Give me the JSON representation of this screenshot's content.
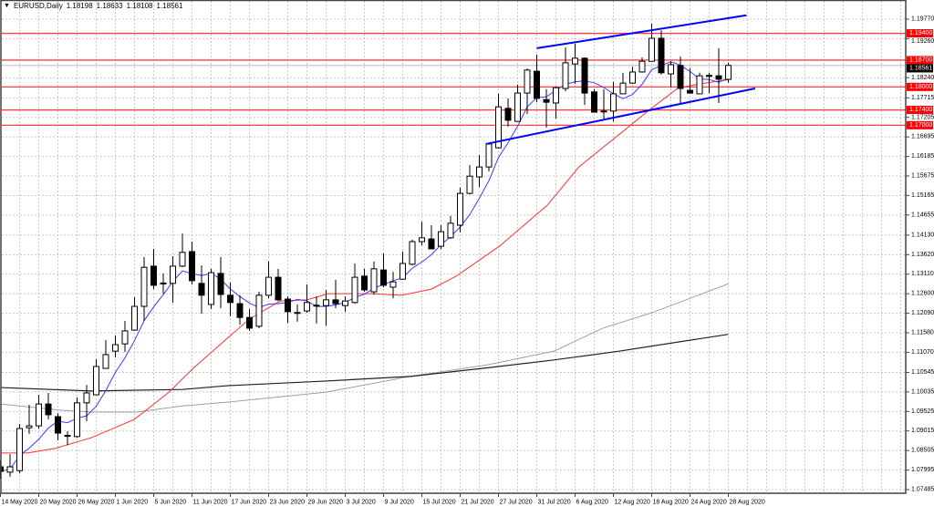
{
  "header": {
    "symbol": "EURUSD,Daily",
    "open": "1.18198",
    "high": "1.18633",
    "low": "1.18108",
    "close": "1.18561"
  },
  "colors": {
    "bull_body": "#ffffff",
    "bear_body": "#000000",
    "wick": "#000000",
    "ma_fast": "#3a3aff",
    "ma_mid": "#ff3030",
    "ma_slow_light": "#a0a0a0",
    "ma_slow_dark": "#202020",
    "level_line": "#ff4040",
    "channel": "#0000ff",
    "grid": "#c8c8c8",
    "current_price_bg": "#000000"
  },
  "chart_data": {
    "type": "candlestick",
    "title": "EURUSD,Daily",
    "ylim": [
      1.07485,
      1.1977
    ],
    "grid": true,
    "price_ticks": [
      "1.19770",
      "1.19260",
      "1.18240",
      "1.17715",
      "1.17205",
      "1.16695",
      "1.16185",
      "1.15675",
      "1.15165",
      "1.14655",
      "1.14130",
      "1.13620",
      "1.13110",
      "1.12600",
      "1.12090",
      "1.11580",
      "1.11070",
      "1.10545",
      "1.10035",
      "1.09525",
      "1.09015",
      "1.08505",
      "1.07995",
      "1.07485"
    ],
    "date_labels": [
      {
        "bar": 0,
        "label": "14 May 2020"
      },
      {
        "bar": 4,
        "label": "20 May 2020"
      },
      {
        "bar": 8,
        "label": "26 May 2020"
      },
      {
        "bar": 12,
        "label": "1 Jun 2020"
      },
      {
        "bar": 16,
        "label": "5 Jun 2020"
      },
      {
        "bar": 20,
        "label": "11 Jun 2020"
      },
      {
        "bar": 24,
        "label": "17 Jun 2020"
      },
      {
        "bar": 28,
        "label": "23 Jun 2020"
      },
      {
        "bar": 32,
        "label": "29 Jun 2020"
      },
      {
        "bar": 36,
        "label": "3 Jul 2020"
      },
      {
        "bar": 40,
        "label": "9 Jul 2020"
      },
      {
        "bar": 44,
        "label": "15 Jul 2020"
      },
      {
        "bar": 48,
        "label": "21 Jul 2020"
      },
      {
        "bar": 52,
        "label": "27 Jul 2020"
      },
      {
        "bar": 56,
        "label": "31 Jul 2020"
      },
      {
        "bar": 60,
        "label": "6 Aug 2020"
      },
      {
        "bar": 64,
        "label": "12 Aug 2020"
      },
      {
        "bar": 68,
        "label": "18 Aug 2020"
      },
      {
        "bar": 72,
        "label": "24 Aug 2020"
      },
      {
        "bar": 76,
        "label": "28 Aug 2020"
      }
    ],
    "ohlc": [
      [
        1.0808,
        1.0825,
        1.0777,
        1.0796
      ],
      [
        1.0794,
        1.0841,
        1.0782,
        1.0808
      ],
      [
        1.0798,
        1.092,
        1.0791,
        1.0908
      ],
      [
        1.091,
        1.097,
        1.0894,
        1.0915
      ],
      [
        1.0915,
        1.0996,
        1.0908,
        1.0972
      ],
      [
        1.0972,
        1.1001,
        1.0932,
        1.0944
      ],
      [
        1.0939,
        1.0948,
        1.0877,
        1.0896
      ],
      [
        1.089,
        1.0901,
        1.0865,
        1.0889
      ],
      [
        1.0887,
        1.0989,
        1.0884,
        1.0975
      ],
      [
        1.0975,
        1.1022,
        1.0927,
        1.1001
      ],
      [
        1.0996,
        1.1089,
        1.0996,
        1.107
      ],
      [
        1.1065,
        1.1139,
        1.1065,
        1.1101
      ],
      [
        1.111,
        1.1151,
        1.1094,
        1.1127
      ],
      [
        1.1129,
        1.1189,
        1.1108,
        1.1163
      ],
      [
        1.1165,
        1.1251,
        1.1163,
        1.1227
      ],
      [
        1.1227,
        1.1356,
        1.1189,
        1.1329
      ],
      [
        1.1332,
        1.1377,
        1.1272,
        1.1282
      ],
      [
        1.1288,
        1.1313,
        1.126,
        1.1287
      ],
      [
        1.1287,
        1.1358,
        1.1237,
        1.1332
      ],
      [
        1.1332,
        1.1417,
        1.1329,
        1.1368
      ],
      [
        1.137,
        1.1396,
        1.1284,
        1.1294
      ],
      [
        1.1287,
        1.1334,
        1.1208,
        1.1256
      ],
      [
        1.1232,
        1.1325,
        1.122,
        1.1315
      ],
      [
        1.1313,
        1.1356,
        1.1222,
        1.1258
      ],
      [
        1.1256,
        1.1289,
        1.1201,
        1.1237
      ],
      [
        1.1234,
        1.1256,
        1.1179,
        1.1198
      ],
      [
        1.1198,
        1.122,
        1.1163,
        1.117
      ],
      [
        1.1175,
        1.1265,
        1.117,
        1.1256
      ],
      [
        1.1256,
        1.1344,
        1.1248,
        1.1303
      ],
      [
        1.1303,
        1.1325,
        1.1241,
        1.1244
      ],
      [
        1.1246,
        1.1253,
        1.1184,
        1.1213
      ],
      [
        1.1211,
        1.1232,
        1.1187,
        1.121
      ],
      [
        1.1215,
        1.1284,
        1.121,
        1.1237
      ],
      [
        1.1229,
        1.1253,
        1.1182,
        1.123
      ],
      [
        1.1229,
        1.127,
        1.1177,
        1.1244
      ],
      [
        1.1244,
        1.1296,
        1.1222,
        1.1234
      ],
      [
        1.1229,
        1.1253,
        1.1213,
        1.1241
      ],
      [
        1.1237,
        1.1339,
        1.1234,
        1.1303
      ],
      [
        1.1306,
        1.1325,
        1.1265,
        1.127
      ],
      [
        1.1265,
        1.1344,
        1.1258,
        1.1325
      ],
      [
        1.1322,
        1.1365,
        1.1277,
        1.1282
      ],
      [
        1.1277,
        1.1317,
        1.1248,
        1.1291
      ],
      [
        1.1298,
        1.137,
        1.1296,
        1.1339
      ],
      [
        1.1337,
        1.1401,
        1.1334,
        1.1396
      ],
      [
        1.1396,
        1.1448,
        1.1387,
        1.1406
      ],
      [
        1.1403,
        1.1439,
        1.1377,
        1.1377
      ],
      [
        1.1384,
        1.1439,
        1.1377,
        1.1422
      ],
      [
        1.1406,
        1.1463,
        1.1403,
        1.1444
      ],
      [
        1.1439,
        1.1537,
        1.142,
        1.1522
      ],
      [
        1.1522,
        1.1596,
        1.152,
        1.1567
      ],
      [
        1.1565,
        1.1622,
        1.1539,
        1.1591
      ],
      [
        1.1591,
        1.1653,
        1.1579,
        1.1651
      ],
      [
        1.1641,
        1.1782,
        1.1639,
        1.1748
      ],
      [
        1.1744,
        1.177,
        1.1696,
        1.1713
      ],
      [
        1.171,
        1.1806,
        1.171,
        1.1784
      ],
      [
        1.1784,
        1.1848,
        1.1729,
        1.1844
      ],
      [
        1.1841,
        1.1884,
        1.176,
        1.177
      ],
      [
        1.1767,
        1.1794,
        1.1694,
        1.176
      ],
      [
        1.1758,
        1.1801,
        1.1717,
        1.1798
      ],
      [
        1.1796,
        1.1903,
        1.1789,
        1.1863
      ],
      [
        1.186,
        1.1913,
        1.1808,
        1.1875
      ],
      [
        1.1875,
        1.1877,
        1.1753,
        1.1784
      ],
      [
        1.1787,
        1.1794,
        1.1734,
        1.1734
      ],
      [
        1.1736,
        1.1794,
        1.1717,
        1.1737
      ],
      [
        1.1737,
        1.1813,
        1.171,
        1.1782
      ],
      [
        1.1782,
        1.1837,
        1.1782,
        1.181
      ],
      [
        1.181,
        1.1853,
        1.1808,
        1.1839
      ],
      [
        1.1839,
        1.1877,
        1.1837,
        1.1867
      ],
      [
        1.1867,
        1.1965,
        1.1867,
        1.1927
      ],
      [
        1.1927,
        1.1948,
        1.1832,
        1.1837
      ],
      [
        1.1834,
        1.1867,
        1.1798,
        1.1858
      ],
      [
        1.1856,
        1.1879,
        1.1753,
        1.1796
      ],
      [
        1.1791,
        1.1848,
        1.1782,
        1.1784
      ],
      [
        1.1782,
        1.1837,
        1.1782,
        1.1829
      ],
      [
        1.1829,
        1.1837,
        1.1784,
        1.183
      ],
      [
        1.1829,
        1.1901,
        1.1758,
        1.182
      ],
      [
        1.18198,
        1.18633,
        1.18108,
        1.18561
      ]
    ],
    "ma_fast_period": 5,
    "ma_mid": [
      [
        0,
        1.0844
      ],
      [
        2.8,
        1.0844
      ],
      [
        5.7,
        1.0856
      ],
      [
        9.5,
        1.0884
      ],
      [
        14,
        1.0932
      ],
      [
        17.6,
        1.1003
      ],
      [
        20.2,
        1.1067
      ],
      [
        23.8,
        1.1146
      ],
      [
        26,
        1.1194
      ],
      [
        29.2,
        1.1241
      ],
      [
        32,
        1.1244
      ],
      [
        34.2,
        1.126
      ],
      [
        38.7,
        1.126
      ],
      [
        41.9,
        1.1256
      ],
      [
        45,
        1.1272
      ],
      [
        47.6,
        1.1306
      ],
      [
        52.1,
        1.1384
      ],
      [
        57.1,
        1.1491
      ],
      [
        60.4,
        1.1591
      ],
      [
        65.7,
        1.1698
      ],
      [
        67.6,
        1.1737
      ],
      [
        70.7,
        1.1796
      ],
      [
        73,
        1.1808
      ],
      [
        75.5,
        1.1817
      ],
      [
        76,
        1.1819
      ]
    ],
    "ma_slow_light": [
      [
        0,
        1.0972
      ],
      [
        6.3,
        1.0956
      ],
      [
        9.5,
        1.0951
      ],
      [
        14.2,
        1.0951
      ],
      [
        19,
        1.0967
      ],
      [
        23.8,
        1.0977
      ],
      [
        34,
        1.1003
      ],
      [
        42.8,
        1.1044
      ],
      [
        51,
        1.1075
      ],
      [
        57.8,
        1.111
      ],
      [
        62.9,
        1.117
      ],
      [
        68,
        1.121
      ],
      [
        76,
        1.1286
      ]
    ],
    "ma_slow_dark": [
      [
        0,
        1.1015
      ],
      [
        9.5,
        1.1006
      ],
      [
        19,
        1.101
      ],
      [
        23.8,
        1.102
      ],
      [
        34,
        1.1032
      ],
      [
        42.8,
        1.1044
      ],
      [
        51,
        1.1067
      ],
      [
        57.8,
        1.1087
      ],
      [
        64.6,
        1.111
      ],
      [
        76,
        1.1154
      ]
    ],
    "levels": [
      {
        "price": 1.194,
        "label": "1.19400"
      },
      {
        "price": 1.187,
        "label": "1.18700"
      },
      {
        "price": 1.18,
        "label": "1.18000"
      },
      {
        "price": 1.174,
        "label": "1.17400"
      },
      {
        "price": 1.17,
        "label": "1.17000"
      }
    ],
    "current_price": {
      "price": 1.18561,
      "label": "1.18561"
    },
    "channel": [
      {
        "from": [
          56,
          1.1901
        ],
        "to": [
          77.9,
          1.1987
        ]
      },
      {
        "from": [
          50.7,
          1.1651
        ],
        "to": [
          78.8,
          1.1796
        ]
      }
    ]
  }
}
